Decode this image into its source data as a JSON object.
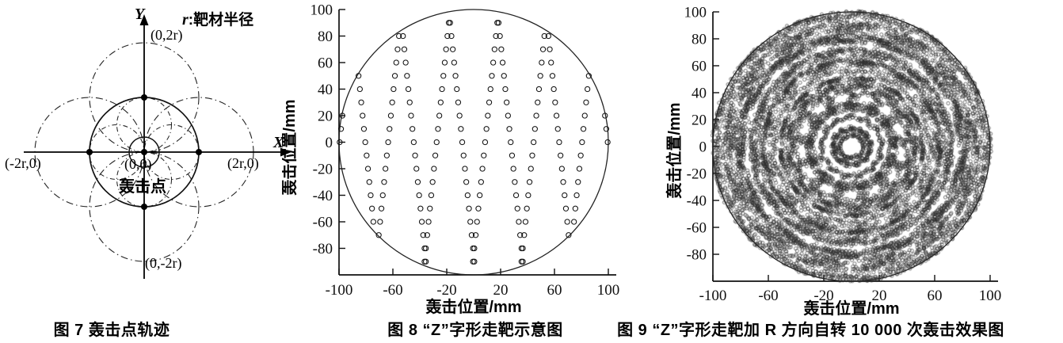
{
  "page": {
    "background": "#ffffff",
    "text_color": "#000000"
  },
  "fig7": {
    "caption": "图 7  轰击点轨迹",
    "legend_r": "r",
    "legend_text": ":靶材半径",
    "x_axis_letter": "X",
    "y_axis_letter": "Y",
    "labels": {
      "top": "(0,2r)",
      "bottom": "(0,-2r)",
      "left": "(-2r,0)",
      "right": "(2r,0)",
      "origin": "(0,0)",
      "origin_title": "轰击点"
    },
    "description": "轰击点轨迹: solid target circle of radius r centered on the bombardment point (0,0); small solid circle at the origin; dash-dot trajectory circles of radius r centered at (r,0), (-r,0), (0,r), (0,-r) and of radius r/2 centered at (r/2,0), (-r/2,0), (0,r/2), (0,-r/2); filled dots at (0,0), (±r,0), (0,±r)."
  },
  "chart_data": [
    {
      "id": "fig8",
      "type": "scatter",
      "title": "图 8  “Z”字形走靶示意图",
      "xlabel": "轰击位置/mm",
      "ylabel": "轰击位置/mm",
      "xlim": [
        -100,
        100
      ],
      "ylim": [
        -100,
        100
      ],
      "xticks": [
        -100,
        -60,
        -20,
        20,
        60,
        100
      ],
      "yticks": [
        100,
        80,
        60,
        40,
        20,
        0,
        -20,
        -40,
        -60,
        -80
      ],
      "grid": false,
      "boundary_circle_radius": 100,
      "marker": "open-circle",
      "rows": [
        {
          "y": 90,
          "x": [
            -18.5,
            -17.5,
            17.5,
            18.5
          ]
        },
        {
          "y": 80,
          "x": [
            -55.5,
            -52.5,
            -19.5,
            -16.5,
            16.5,
            19.5,
            52.5,
            55.5
          ]
        },
        {
          "y": 70,
          "x": [
            -56.5,
            -51.5,
            -20.5,
            -15.5,
            15.5,
            20.5,
            51.5,
            56.5
          ]
        },
        {
          "y": 60,
          "x": [
            -57.5,
            -50.5,
            -21.5,
            -14.5,
            14.5,
            21.5,
            50.5,
            57.5
          ]
        },
        {
          "y": 50,
          "x": [
            -85.5,
            -58.5,
            -49.5,
            -22.5,
            -13.5,
            13.5,
            22.5,
            49.5,
            58.5,
            85.5
          ]
        },
        {
          "y": 40,
          "x": [
            -84.5,
            -59.5,
            -48.5,
            -23.5,
            -12.5,
            12.5,
            23.5,
            48.5,
            59.5,
            84.5
          ]
        },
        {
          "y": 30,
          "x": [
            -83.5,
            -60.5,
            -47.5,
            -24.5,
            -11.5,
            11.5,
            24.5,
            47.5,
            60.5,
            83.5
          ]
        },
        {
          "y": 20,
          "x": [
            -97.5,
            -82.5,
            -61.5,
            -46.5,
            -25.5,
            -10.5,
            10.5,
            25.5,
            46.5,
            61.5,
            82.5,
            97.5
          ]
        },
        {
          "y": 10,
          "x": [
            -98.5,
            -81.5,
            -62.5,
            -45.5,
            -26.5,
            -9.5,
            9.5,
            26.5,
            45.5,
            62.5,
            81.5,
            98.5
          ]
        },
        {
          "y": 0,
          "x": [
            -99.5,
            -80.5,
            -63.5,
            -44.5,
            -27.5,
            -8.5,
            8.5,
            27.5,
            44.5,
            63.5,
            80.5,
            99.5
          ]
        },
        {
          "y": -10,
          "x": [
            -79.5,
            -64.5,
            -43.5,
            -28.5,
            -7.5,
            7.5,
            28.5,
            43.5,
            64.5,
            79.5
          ]
        },
        {
          "y": -20,
          "x": [
            -78.5,
            -65.5,
            -42.5,
            -29.5,
            -6.5,
            6.5,
            29.5,
            42.5,
            65.5,
            78.5
          ]
        },
        {
          "y": -30,
          "x": [
            -77.5,
            -66.5,
            -41.5,
            -30.5,
            -5.5,
            5.5,
            30.5,
            41.5,
            66.5,
            77.5
          ]
        },
        {
          "y": -40,
          "x": [
            -76.5,
            -67.5,
            -40.5,
            -31.5,
            -4.5,
            4.5,
            31.5,
            40.5,
            67.5,
            76.5
          ]
        },
        {
          "y": -50,
          "x": [
            -75.5,
            -68.5,
            -39.5,
            -32.5,
            -3.5,
            3.5,
            32.5,
            39.5,
            68.5,
            75.5
          ]
        },
        {
          "y": -60,
          "x": [
            -74.5,
            -69.5,
            -38.5,
            -33.5,
            -2.5,
            2.5,
            33.5,
            38.5,
            69.5,
            74.5
          ]
        },
        {
          "y": -70,
          "x": [
            -70.5,
            -37.5,
            -34.5,
            -1.5,
            1.5,
            34.5,
            37.5,
            70.5
          ]
        },
        {
          "y": -80,
          "x": [
            -36.5,
            -35.5,
            -0.5,
            0.5,
            35.5,
            36.5
          ]
        },
        {
          "y": -90,
          "x": [
            -36.5,
            -35.5,
            -0.5,
            0.5,
            35.5,
            36.5
          ]
        }
      ]
    },
    {
      "id": "fig9",
      "type": "scatter",
      "title": "图 9  “Z”字形走靶加 R 方向自转 10 000 次轰击效果图",
      "xlabel": "轰击位置/mm",
      "ylabel": "轰击位置/mm",
      "xlim": [
        -100,
        100
      ],
      "ylim": [
        -100,
        100
      ],
      "xticks": [
        -100,
        -60,
        -20,
        20,
        60,
        100
      ],
      "yticks": [
        100,
        80,
        60,
        40,
        20,
        0,
        -20,
        -40,
        -60,
        -80
      ],
      "grid": false,
      "boundary_circle_radius": 100,
      "marker": "open-circle",
      "n_points": 10000,
      "pattern": "the Z-shaped walk points of Fig.8 repeatedly rotated about the target centre (R-direction self-rotation), 10 000 bombardment points densely filling the 100 mm radius disc with concentric-ring moire texture"
    }
  ]
}
